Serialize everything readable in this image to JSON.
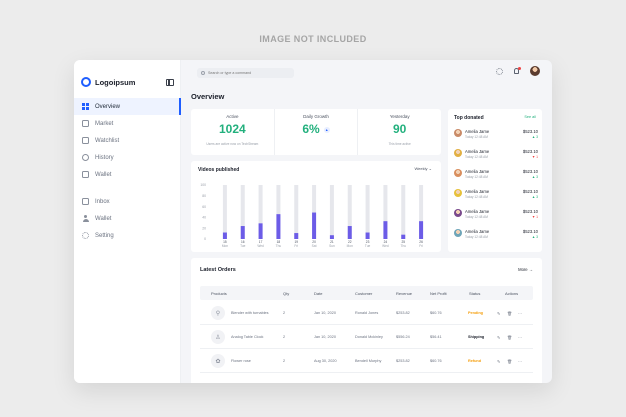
{
  "watermark": "IMAGE NOT INCLUDED",
  "app": {
    "logo": "Logoipsum",
    "brand_color": "#1f5eff"
  },
  "sidebar": {
    "items": [
      {
        "label": "Overview",
        "icon": "grid-icon",
        "active": true
      },
      {
        "label": "Market",
        "icon": "market-icon"
      },
      {
        "label": "Watchlist",
        "icon": "watchlist-icon"
      },
      {
        "label": "History",
        "icon": "history-icon"
      },
      {
        "label": "Wallet",
        "icon": "wallet-icon"
      }
    ],
    "items2": [
      {
        "label": "Inbox",
        "icon": "inbox-icon"
      },
      {
        "label": "Wallet",
        "icon": "user-icon"
      },
      {
        "label": "Setting",
        "icon": "gear-icon"
      }
    ]
  },
  "header": {
    "search_placeholder": "Search or type a command"
  },
  "page_title": "Overview",
  "stats": [
    {
      "label": "Active",
      "value": "1024",
      "sub": "Users are active now on TechStream"
    },
    {
      "label": "Daily Growth",
      "value": "6%",
      "badge": "▲",
      "sub": ""
    },
    {
      "label": "Yesterday",
      "value": "90",
      "sub": "This time active"
    }
  ],
  "videos": {
    "title": "Videos published",
    "period": "Weekly",
    "accent": "#6c5ce7",
    "track": "#e6e7ec"
  },
  "chart_data": {
    "type": "bar",
    "title": "Videos published",
    "ylim": [
      0,
      100
    ],
    "yticks": [
      "100",
      "80",
      "60",
      "40",
      "20",
      "0"
    ],
    "categories": [
      "15 Mon",
      "16 Tue",
      "17 Wed",
      "18 Thu",
      "19 Fri",
      "20 Sat",
      "21 Sun",
      "22 Mon",
      "23 Tue",
      "24 Wed",
      "25 Thu",
      "26 Fri"
    ],
    "series": [
      {
        "values": [
          12,
          24,
          29,
          46,
          11,
          49,
          7,
          24,
          12,
          33,
          8,
          33
        ]
      }
    ]
  },
  "top_donated": {
    "title": "Top donated",
    "see_all": "See all",
    "donors": [
      {
        "name": "Amelia Jame",
        "date": "Today 12:48 AM",
        "amount": "$523.10",
        "delta": "▲ 3",
        "up": true,
        "avatar": "#c98b68"
      },
      {
        "name": "Amelia Jame",
        "date": "Today 12:48 AM",
        "amount": "$523.10",
        "delta": "▼ 1",
        "up": false,
        "avatar": "#e2b043"
      },
      {
        "name": "Amelia Jame",
        "date": "Today 12:48 AM",
        "amount": "$523.10",
        "delta": "▲ 3",
        "up": true,
        "avatar": "#d98f5e"
      },
      {
        "name": "Amelia Jame",
        "date": "Today 12:48 AM",
        "amount": "$523.10",
        "delta": "▲ 3",
        "up": true,
        "avatar": "#e7c13b"
      },
      {
        "name": "Amelia Jame",
        "date": "Today 12:48 AM",
        "amount": "$523.10",
        "delta": "▼ 1",
        "up": false,
        "avatar": "#7a4a8c"
      },
      {
        "name": "Amelia Jame",
        "date": "Today 12:48 AM",
        "amount": "$523.10",
        "delta": "▲ 3",
        "up": true,
        "avatar": "#6fa5b8"
      }
    ]
  },
  "orders": {
    "title": "Latest Orders",
    "more": "More →",
    "columns": [
      "Products",
      "Qty",
      "Date",
      "Customer",
      "Revenue",
      "Net Profit",
      "Status",
      "Actions"
    ],
    "rows": [
      {
        "product": "Blender with turnables",
        "qty": "2",
        "date": "Jan 10, 2020",
        "customer": "Ronald Jones",
        "revenue": "$253.82",
        "profit": "$60.76",
        "status": "Pending",
        "status_color": "#f59e0b",
        "thumb": "⚲"
      },
      {
        "product": "Analog Table Clock",
        "qty": "2",
        "date": "Jan 10, 2020",
        "customer": "Donald Mckinley",
        "revenue": "$556.24",
        "profit": "$56.41",
        "status": "Shipping",
        "status_color": "#1b1f2a",
        "thumb": "♙"
      },
      {
        "product": "Flower rose",
        "qty": "2",
        "date": "Aug 30, 2020",
        "customer": "Bendell Murphy",
        "revenue": "$253.82",
        "profit": "$60.76",
        "status": "Refund",
        "status_color": "#f59e0b",
        "thumb": "✿"
      }
    ]
  }
}
